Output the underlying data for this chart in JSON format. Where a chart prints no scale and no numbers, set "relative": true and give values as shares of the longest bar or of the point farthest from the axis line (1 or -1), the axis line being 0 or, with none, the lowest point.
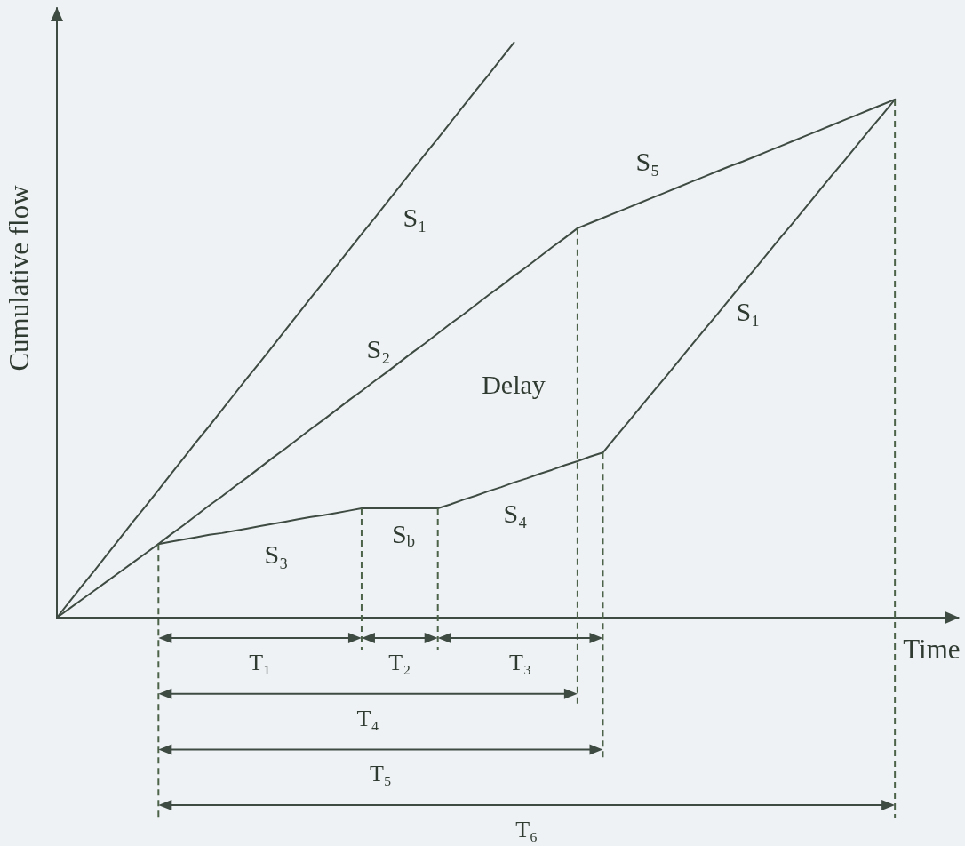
{
  "chart_data": {
    "type": "line",
    "relative": true,
    "xlabel": "Time",
    "ylabel": "Cumulative flow",
    "marker": "none",
    "categories": [
      null,
      null,
      null,
      null,
      null,
      null,
      null,
      null,
      null,
      null,
      null,
      null,
      null,
      null,
      null,
      null,
      null,
      null,
      null,
      null,
      null,
      null,
      null,
      null,
      null,
      null,
      null,
      null,
      null,
      null,
      null,
      null,
      null,
      null,
      null,
      null,
      null,
      null,
      null,
      null,
      null,
      null,
      null,
      null,
      null,
      null,
      null,
      null,
      null,
      null,
      null,
      null,
      null,
      null,
      null,
      null,
      null,
      null,
      null,
      null,
      null,
      null,
      null,
      null,
      null,
      null,
      null,
      null,
      null,
      null,
      null,
      null
    ],
    "series": [
      {
        "color": "#3e4b42",
        "values": [
          0,
          0.028,
          0.056,
          0.083,
          0.111,
          0.139,
          0.167,
          0.194,
          0.222,
          0.25,
          0.278,
          0.306,
          0.333,
          0.361,
          0.389,
          0.417,
          0.444,
          0.472,
          0.5,
          0.528,
          0.556,
          0.583,
          0.611,
          0.639,
          0.667,
          0.694,
          0.722,
          0.75,
          0.778,
          0.806,
          0.833,
          0.861,
          0.889,
          0.917,
          0.944,
          0.972,
          1,
          null,
          null,
          null,
          null,
          null,
          null,
          null,
          null,
          null,
          null,
          null,
          null,
          null,
          null,
          null,
          null,
          null,
          null,
          null,
          null,
          null,
          null,
          null,
          null,
          null,
          null,
          null,
          null,
          null,
          null,
          null,
          null,
          null,
          null,
          null
        ]
      },
      {
        "color": "#3e4b42",
        "values": [
          0,
          0.016,
          0.032,
          0.048,
          0.064,
          0.08,
          0.096,
          0.112,
          0.128,
          0.145,
          0.161,
          0.178,
          0.195,
          0.211,
          0.228,
          0.244,
          0.261,
          0.278,
          0.294,
          0.311,
          0.328,
          0.344,
          0.361,
          0.378,
          0.394,
          0.411,
          0.427,
          0.444,
          0.461,
          0.477,
          0.494,
          0.511,
          0.527,
          0.544,
          0.561,
          0.577,
          0.594,
          0.61,
          0.627,
          0.644,
          0.66,
          0.677,
          0.686,
          0.695,
          0.704,
          0.713,
          0.722,
          0.731,
          0.74,
          0.749,
          0.758,
          0.767,
          0.776,
          0.785,
          0.793,
          0.802,
          0.811,
          0.82,
          0.829,
          0.838,
          0.847,
          0.856,
          0.865,
          0.874,
          0.883,
          0.892,
          0.901,
          null,
          null,
          null,
          null,
          null
        ]
      },
      {
        "color": "#3e4b42",
        "values": [
          null,
          null,
          null,
          null,
          null,
          null,
          null,
          null,
          0.128,
          0.132,
          0.136,
          0.14,
          0.144,
          0.147,
          0.151,
          0.155,
          0.159,
          0.163,
          0.167,
          0.171,
          0.175,
          0.178,
          0.182,
          0.186,
          0.19,
          0.19,
          0.19,
          0.19,
          0.19,
          0.19,
          0.19,
          0.197,
          0.205,
          0.212,
          0.22,
          0.227,
          0.235,
          0.242,
          0.25,
          0.257,
          0.265,
          0.272,
          0.28,
          0.287,
          0.314,
          0.34,
          0.367,
          0.394,
          0.42,
          0.447,
          0.474,
          0.501,
          0.527,
          0.554,
          0.581,
          0.607,
          0.634,
          0.661,
          0.687,
          0.714,
          0.741,
          0.768,
          0.794,
          0.821,
          0.848,
          0.874,
          0.901,
          null,
          null,
          null,
          null,
          null
        ]
      }
    ],
    "annotations": [
      "S₁",
      "S₂",
      "S₅",
      "S₁",
      "Delay",
      "S₃",
      "S$_{b}$",
      "S₄",
      "T₁",
      "T₂",
      "T₃",
      "T₄",
      "T₅",
      "T₆"
    ]
  }
}
